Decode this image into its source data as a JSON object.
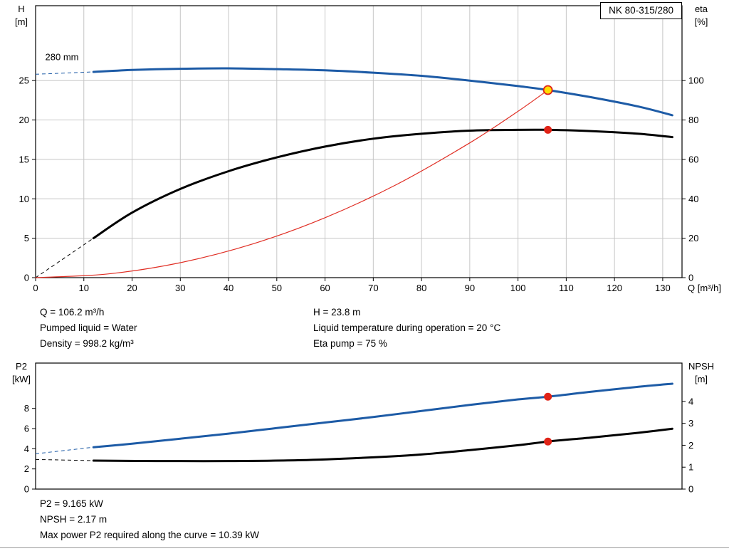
{
  "colors": {
    "curve_blue": "#1d5ba6",
    "curve_black": "#000000",
    "curve_red": "#e02e24",
    "duty_point_fill": "#ffdd00",
    "marker_red": "#e02317",
    "grid": "#c6c6c6"
  },
  "info_top": {
    "left": [
      "Q = 106.2 m³/h",
      "Pumped liquid = Water",
      "Density = 998.2 kg/m³"
    ],
    "right": [
      "H = 23.8 m",
      "Liquid temperature during operation = 20 °C",
      "Eta pump = 75 %"
    ]
  },
  "info_bottom": [
    "P2 = 9.165 kW",
    "NPSH = 2.17 m",
    "Max power P2 required along the curve = 10.39 kW"
  ],
  "chart_data": [
    {
      "type": "line",
      "title": "NK 80-315/280",
      "grid": true,
      "x": {
        "label": "Q [m³/h]",
        "min": 0,
        "max": 134,
        "ticks": [
          0,
          10,
          20,
          30,
          40,
          50,
          60,
          70,
          80,
          90,
          100,
          110,
          120,
          130
        ]
      },
      "y_left": {
        "label": [
          "H",
          "[m]"
        ],
        "min": 0,
        "max": 34.5,
        "ticks": [
          0,
          5,
          10,
          15,
          20,
          25
        ]
      },
      "y_right": {
        "label": [
          "eta",
          "[%]"
        ],
        "min": 0,
        "max": 138,
        "ticks": [
          0,
          20,
          40,
          60,
          80,
          100
        ]
      },
      "annotation": {
        "text": "280 mm",
        "x": 2,
        "y": 27.6
      },
      "series": [
        {
          "name": "head-curve",
          "axis": "left",
          "color": "#1d5ba6",
          "width": 3,
          "dashed": [
            [
              0,
              25.8
            ],
            [
              12,
              26.1
            ]
          ],
          "points": [
            [
              12,
              26.1
            ],
            [
              20,
              26.35
            ],
            [
              30,
              26.5
            ],
            [
              40,
              26.55
            ],
            [
              50,
              26.45
            ],
            [
              60,
              26.3
            ],
            [
              70,
              26.0
            ],
            [
              80,
              25.6
            ],
            [
              90,
              25.0
            ],
            [
              100,
              24.3
            ],
            [
              106.2,
              23.8
            ],
            [
              115,
              22.9
            ],
            [
              125,
              21.7
            ],
            [
              132,
              20.6
            ]
          ]
        },
        {
          "name": "eta-curve",
          "axis": "right",
          "color": "#000000",
          "width": 3,
          "dashed": [
            [
              0,
              0
            ],
            [
              12,
              20
            ]
          ],
          "points": [
            [
              12,
              20
            ],
            [
              20,
              33
            ],
            [
              30,
              45
            ],
            [
              40,
              54
            ],
            [
              50,
              61
            ],
            [
              60,
              66.5
            ],
            [
              70,
              70.5
            ],
            [
              80,
              73
            ],
            [
              90,
              74.6
            ],
            [
              100,
              75
            ],
            [
              106.2,
              75
            ],
            [
              115,
              74.4
            ],
            [
              125,
              73
            ],
            [
              132,
              71.3
            ]
          ]
        },
        {
          "name": "system-curve",
          "axis": "left",
          "color": "#e02e24",
          "width": 1.2,
          "points": [
            [
              0,
              0
            ],
            [
              15,
              0.47
            ],
            [
              30,
              1.9
            ],
            [
              45,
              4.27
            ],
            [
              60,
              7.6
            ],
            [
              75,
              11.87
            ],
            [
              90,
              17.1
            ],
            [
              100,
              21.1
            ],
            [
              106.2,
              23.8
            ]
          ]
        }
      ],
      "markers": [
        {
          "name": "duty-point",
          "x": 106.2,
          "y": 23.8,
          "axis": "left",
          "fill": "#ffdd00",
          "stroke": "#e02317",
          "r": 6
        },
        {
          "name": "eta-point",
          "x": 106.2,
          "y": 75,
          "axis": "right",
          "fill": "#e02317",
          "stroke": "#e02317",
          "r": 5
        }
      ]
    },
    {
      "type": "line",
      "title": "",
      "grid": false,
      "x": {
        "label": "",
        "min": 0,
        "max": 134,
        "ticks": []
      },
      "y_left": {
        "label": [
          "P2",
          "[kW]"
        ],
        "min": 0,
        "max": 12.5,
        "ticks": [
          0,
          2,
          4,
          6,
          8
        ]
      },
      "y_right": {
        "label": [
          "NPSH",
          "[m]"
        ],
        "min": 0,
        "max": 5.75,
        "ticks": [
          0,
          1,
          2,
          3,
          4
        ]
      },
      "series": [
        {
          "name": "p2-curve",
          "axis": "left",
          "color": "#1d5ba6",
          "width": 3,
          "dashed": [
            [
              0,
              3.5
            ],
            [
              12,
              4.15
            ]
          ],
          "points": [
            [
              12,
              4.15
            ],
            [
              20,
              4.5
            ],
            [
              30,
              5.0
            ],
            [
              40,
              5.5
            ],
            [
              50,
              6.05
            ],
            [
              60,
              6.6
            ],
            [
              70,
              7.15
            ],
            [
              80,
              7.75
            ],
            [
              90,
              8.35
            ],
            [
              100,
              8.9
            ],
            [
              106.2,
              9.165
            ],
            [
              115,
              9.65
            ],
            [
              125,
              10.15
            ],
            [
              132,
              10.45
            ]
          ]
        },
        {
          "name": "npsh-curve",
          "axis": "right",
          "color": "#000000",
          "width": 3,
          "dashed": [
            [
              0,
              1.35
            ],
            [
              12,
              1.3
            ]
          ],
          "points": [
            [
              12,
              1.3
            ],
            [
              25,
              1.28
            ],
            [
              40,
              1.28
            ],
            [
              55,
              1.32
            ],
            [
              70,
              1.45
            ],
            [
              80,
              1.58
            ],
            [
              90,
              1.78
            ],
            [
              100,
              2.0
            ],
            [
              106.2,
              2.17
            ],
            [
              115,
              2.35
            ],
            [
              125,
              2.57
            ],
            [
              132,
              2.75
            ]
          ]
        }
      ],
      "markers": [
        {
          "name": "p2-point",
          "x": 106.2,
          "y": 9.165,
          "axis": "left",
          "fill": "#e02317",
          "stroke": "#e02317",
          "r": 5
        },
        {
          "name": "npsh-point",
          "x": 106.2,
          "y": 2.17,
          "axis": "right",
          "fill": "#e02317",
          "stroke": "#e02317",
          "r": 5
        }
      ]
    }
  ]
}
